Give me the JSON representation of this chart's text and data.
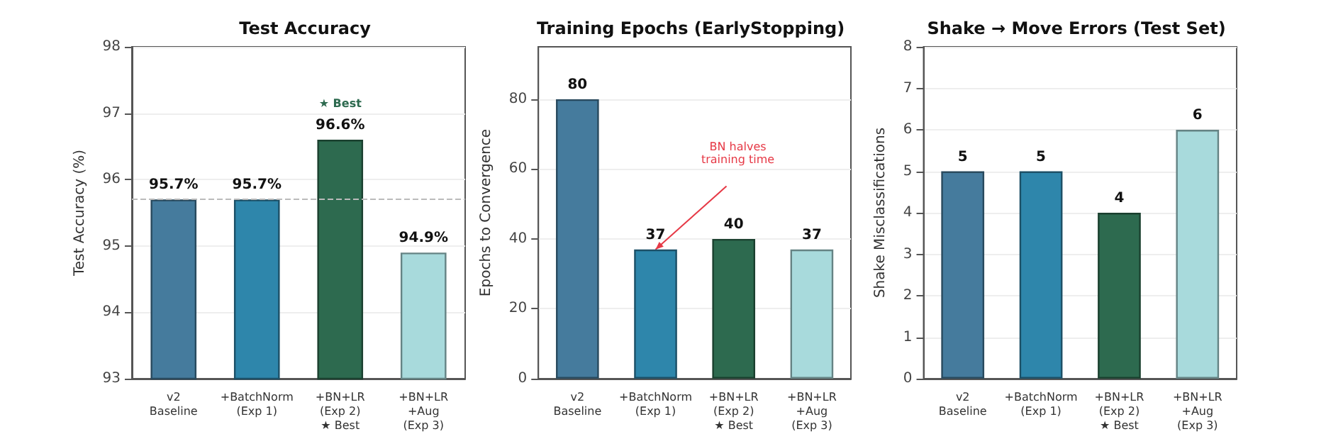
{
  "chart_data": [
    {
      "type": "bar",
      "title": "Test Accuracy",
      "ylabel": "Test Accuracy (%)",
      "categories": [
        "v2\nBaseline",
        "+BatchNorm\n(Exp 1)",
        "+BN+LR\n(Exp 2)\n★ Best",
        "+BN+LR\n+Aug\n(Exp 3)"
      ],
      "values": [
        95.7,
        95.7,
        96.6,
        94.9
      ],
      "colors": [
        "#457b9d",
        "#2e86ab",
        "#2d6a4f",
        "#a8dadc"
      ],
      "value_labels": [
        "95.7%",
        "95.7%",
        "96.6%",
        "94.9%"
      ],
      "ylim": [
        93,
        98
      ],
      "yticks": [
        93,
        94,
        95,
        96,
        97,
        98
      ],
      "grid": "y",
      "ref_lines": [
        {
          "axis": "y",
          "value": 95.7,
          "color": "#bbbbbb",
          "line_style": "dashed"
        }
      ],
      "annotations": [
        "★ Best"
      ]
    },
    {
      "type": "bar",
      "title": "Training Epochs (EarlyStopping)",
      "ylabel": "Epochs to Convergence",
      "categories": [
        "v2\nBaseline",
        "+BatchNorm\n(Exp 1)",
        "+BN+LR\n(Exp 2)\n★ Best",
        "+BN+LR\n+Aug\n(Exp 3)"
      ],
      "values": [
        80,
        37,
        40,
        37
      ],
      "colors": [
        "#457b9d",
        "#2e86ab",
        "#2d6a4f",
        "#a8dadc"
      ],
      "data_labels": true,
      "ylim": [
        0,
        95
      ],
      "yticks": [
        0,
        20,
        40,
        60,
        80
      ],
      "grid": "y",
      "annotations": [
        "BN halves\ntraining time"
      ]
    },
    {
      "type": "bar",
      "title": "Shake → Move Errors (Test Set)",
      "ylabel": "Shake Misclassifications",
      "categories": [
        "v2\nBaseline",
        "+BatchNorm\n(Exp 1)",
        "+BN+LR\n(Exp 2)\n★ Best",
        "+BN+LR\n+Aug\n(Exp 3)"
      ],
      "values": [
        5,
        5,
        4,
        6
      ],
      "colors": [
        "#457b9d",
        "#2e86ab",
        "#2d6a4f",
        "#a8dadc"
      ],
      "data_labels": true,
      "ylim": [
        0,
        8
      ],
      "yticks": [
        0,
        1,
        2,
        3,
        4,
        5,
        6,
        7,
        8
      ],
      "grid": "y"
    }
  ]
}
